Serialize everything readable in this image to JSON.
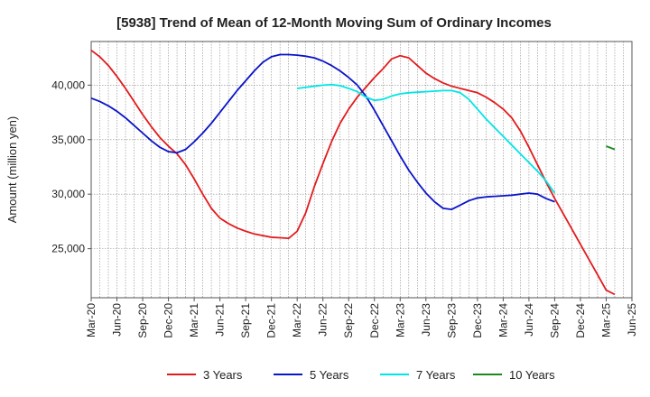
{
  "chart_data": {
    "type": "line",
    "title": "[5938]  Trend of Mean of 12-Month Moving Sum of Ordinary Incomes",
    "xlabel": "",
    "ylabel": "Amount (million yen)",
    "ylim": [
      20500,
      44000
    ],
    "y_ticks": [
      25000,
      30000,
      35000,
      40000
    ],
    "y_tick_labels": [
      "25,000",
      "30,000",
      "35,000",
      "40,000"
    ],
    "x_tick_labels": [
      "Mar-20",
      "Jun-20",
      "Sep-20",
      "Dec-20",
      "Mar-21",
      "Jun-21",
      "Sep-21",
      "Dec-21",
      "Mar-22",
      "Jun-22",
      "Sep-22",
      "Dec-22",
      "Mar-23",
      "Jun-23",
      "Sep-23",
      "Dec-23",
      "Mar-24",
      "Jun-24",
      "Sep-24",
      "Dec-24",
      "Mar-25",
      "Jun-25"
    ],
    "x_range_months": [
      0,
      63
    ],
    "grid": true,
    "legend_position": "bottom",
    "series": [
      {
        "name": "3 Years",
        "color": "#e31a1c",
        "points": [
          [
            0,
            43200
          ],
          [
            1,
            42600
          ],
          [
            2,
            41800
          ],
          [
            3,
            40800
          ],
          [
            4,
            39700
          ],
          [
            5,
            38500
          ],
          [
            6,
            37300
          ],
          [
            7,
            36200
          ],
          [
            8,
            35200
          ],
          [
            9,
            34400
          ],
          [
            10,
            33700
          ],
          [
            11,
            32700
          ],
          [
            12,
            31400
          ],
          [
            13,
            30000
          ],
          [
            14,
            28700
          ],
          [
            15,
            27800
          ],
          [
            16,
            27300
          ],
          [
            17,
            26900
          ],
          [
            18,
            26600
          ],
          [
            19,
            26350
          ],
          [
            20,
            26200
          ],
          [
            21,
            26050
          ],
          [
            22,
            26000
          ],
          [
            23,
            25950
          ],
          [
            24,
            26600
          ],
          [
            25,
            28300
          ],
          [
            26,
            30700
          ],
          [
            27,
            32800
          ],
          [
            28,
            34800
          ],
          [
            29,
            36500
          ],
          [
            30,
            37800
          ],
          [
            31,
            38900
          ],
          [
            32,
            39800
          ],
          [
            33,
            40700
          ],
          [
            34,
            41500
          ],
          [
            35,
            42400
          ],
          [
            36,
            42700
          ],
          [
            37,
            42500
          ],
          [
            38,
            41800
          ],
          [
            39,
            41100
          ],
          [
            40,
            40600
          ],
          [
            41,
            40200
          ],
          [
            42,
            39900
          ],
          [
            43,
            39700
          ],
          [
            44,
            39500
          ],
          [
            45,
            39300
          ],
          [
            46,
            38900
          ],
          [
            47,
            38400
          ],
          [
            48,
            37800
          ],
          [
            49,
            37000
          ],
          [
            50,
            35800
          ],
          [
            51,
            34300
          ],
          [
            52,
            32700
          ],
          [
            53,
            31100
          ],
          [
            54,
            29600
          ],
          [
            55,
            28200
          ],
          [
            56,
            26800
          ],
          [
            57,
            25400
          ],
          [
            58,
            24000
          ],
          [
            59,
            22600
          ],
          [
            60,
            21200
          ],
          [
            61,
            20800
          ]
        ]
      },
      {
        "name": "5 Years",
        "color": "#0a14c8",
        "points": [
          [
            0,
            38800
          ],
          [
            1,
            38500
          ],
          [
            2,
            38100
          ],
          [
            3,
            37600
          ],
          [
            4,
            37000
          ],
          [
            5,
            36300
          ],
          [
            6,
            35600
          ],
          [
            7,
            34900
          ],
          [
            8,
            34300
          ],
          [
            9,
            33900
          ],
          [
            10,
            33800
          ],
          [
            11,
            34100
          ],
          [
            12,
            34800
          ],
          [
            13,
            35600
          ],
          [
            14,
            36500
          ],
          [
            15,
            37500
          ],
          [
            16,
            38500
          ],
          [
            17,
            39500
          ],
          [
            18,
            40400
          ],
          [
            19,
            41300
          ],
          [
            20,
            42100
          ],
          [
            21,
            42600
          ],
          [
            22,
            42800
          ],
          [
            23,
            42800
          ],
          [
            24,
            42750
          ],
          [
            25,
            42650
          ],
          [
            26,
            42500
          ],
          [
            27,
            42200
          ],
          [
            28,
            41800
          ],
          [
            29,
            41300
          ],
          [
            30,
            40700
          ],
          [
            31,
            40000
          ],
          [
            32,
            39000
          ],
          [
            33,
            37700
          ],
          [
            34,
            36300
          ],
          [
            35,
            34900
          ],
          [
            36,
            33500
          ],
          [
            37,
            32200
          ],
          [
            38,
            31100
          ],
          [
            39,
            30100
          ],
          [
            40,
            29300
          ],
          [
            41,
            28700
          ],
          [
            42,
            28600
          ],
          [
            43,
            29000
          ],
          [
            44,
            29400
          ],
          [
            45,
            29650
          ],
          [
            46,
            29750
          ],
          [
            47,
            29800
          ],
          [
            48,
            29850
          ],
          [
            49,
            29900
          ],
          [
            50,
            30000
          ],
          [
            51,
            30100
          ],
          [
            52,
            30000
          ],
          [
            53,
            29600
          ],
          [
            54,
            29300
          ]
        ]
      },
      {
        "name": "7 Years",
        "color": "#00e5e5",
        "points": [
          [
            0,
            39700
          ],
          [
            1,
            39800
          ],
          [
            2,
            39900
          ],
          [
            3,
            40000
          ],
          [
            4,
            40050
          ],
          [
            5,
            39950
          ],
          [
            6,
            39700
          ],
          [
            7,
            39400
          ],
          [
            8,
            38900
          ],
          [
            9,
            38600
          ],
          [
            10,
            38700
          ],
          [
            11,
            39000
          ],
          [
            12,
            39200
          ],
          [
            13,
            39300
          ],
          [
            14,
            39350
          ],
          [
            15,
            39400
          ],
          [
            16,
            39450
          ],
          [
            17,
            39500
          ],
          [
            18,
            39500
          ],
          [
            19,
            39300
          ],
          [
            20,
            38700
          ],
          [
            21,
            37800
          ],
          [
            22,
            36900
          ],
          [
            23,
            36100
          ],
          [
            24,
            35300
          ],
          [
            25,
            34500
          ],
          [
            26,
            33700
          ],
          [
            27,
            32900
          ],
          [
            28,
            32100
          ],
          [
            29,
            31200
          ],
          [
            30,
            30100
          ]
        ],
        "start_month": 24
      },
      {
        "name": "10 Years",
        "color": "#1a8a1a",
        "points": [
          [
            0,
            34400
          ],
          [
            1,
            34100
          ]
        ],
        "start_month": 60
      }
    ]
  }
}
